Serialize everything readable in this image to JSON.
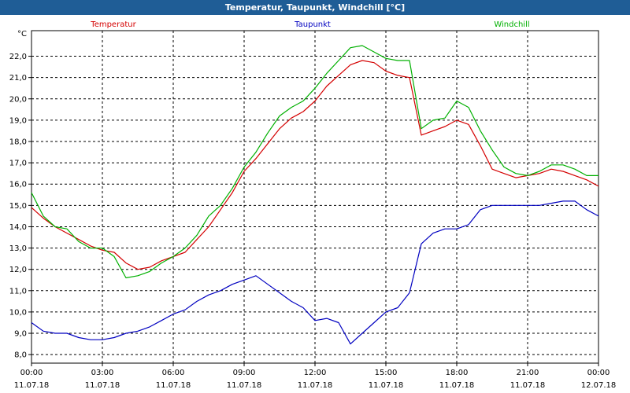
{
  "window": {
    "title": "Temperatur, Taupunkt, Windchill [°C]"
  },
  "colors": {
    "titlebar": "#1f5d96",
    "grid": "#000000",
    "temperatur": "#d40000",
    "taupunkt": "#0000c0",
    "windchill": "#00b000"
  },
  "chart_data": {
    "type": "line",
    "title": "Temperatur, Taupunkt, Windchill [°C]",
    "ylabel": "°C",
    "ylim": [
      7.6,
      23.2
    ],
    "yticks": [
      "8,0",
      "9,0",
      "10,0",
      "11,0",
      "12,0",
      "13,0",
      "14,0",
      "15,0",
      "16,0",
      "17,0",
      "18,0",
      "19,0",
      "20,0",
      "21,0",
      "22,0"
    ],
    "xlim": [
      0,
      24
    ],
    "xticks": [
      {
        "time": "00:00",
        "date": "11.07.18"
      },
      {
        "time": "03:00",
        "date": "11.07.18"
      },
      {
        "time": "06:00",
        "date": "11.07.18"
      },
      {
        "time": "09:00",
        "date": "11.07.18"
      },
      {
        "time": "12:00",
        "date": "11.07.18"
      },
      {
        "time": "15:00",
        "date": "11.07.18"
      },
      {
        "time": "18:00",
        "date": "11.07.18"
      },
      {
        "time": "21:00",
        "date": "11.07.18"
      },
      {
        "time": "00:00",
        "date": "12.07.18"
      }
    ],
    "grid": true,
    "series": [
      {
        "name": "Temperatur",
        "color": "#d40000",
        "x": [
          0,
          0.5,
          1,
          1.5,
          2,
          2.5,
          3,
          3.5,
          4,
          4.5,
          5,
          5.5,
          6,
          6.5,
          7,
          7.5,
          8,
          8.5,
          9,
          9.5,
          10,
          10.5,
          11,
          11.5,
          12,
          12.5,
          13,
          13.5,
          14,
          14.5,
          15,
          15.5,
          16,
          16.5,
          17,
          17.5,
          18,
          18.5,
          19,
          19.5,
          20,
          20.5,
          21,
          21.5,
          22,
          22.5,
          23,
          23.5,
          24
        ],
        "values": [
          14.9,
          14.4,
          14.0,
          13.7,
          13.4,
          13.1,
          12.9,
          12.8,
          12.3,
          12.0,
          12.1,
          12.4,
          12.6,
          12.8,
          13.4,
          14.0,
          14.8,
          15.6,
          16.6,
          17.2,
          17.9,
          18.6,
          19.1,
          19.4,
          19.9,
          20.6,
          21.1,
          21.6,
          21.8,
          21.7,
          21.3,
          21.1,
          21.0,
          18.3,
          18.5,
          18.7,
          19.0,
          18.8,
          17.8,
          16.7,
          16.5,
          16.3,
          16.4,
          16.5,
          16.7,
          16.6,
          16.4,
          16.2,
          15.9
        ]
      },
      {
        "name": "Taupunkt",
        "color": "#0000c0",
        "x": [
          0,
          0.5,
          1,
          1.5,
          2,
          2.5,
          3,
          3.5,
          4,
          4.5,
          5,
          5.5,
          6,
          6.5,
          7,
          7.5,
          8,
          8.5,
          9,
          9.5,
          10,
          10.5,
          11,
          11.5,
          12,
          12.5,
          13,
          13.5,
          14,
          14.5,
          15,
          15.5,
          16,
          16.5,
          17,
          17.5,
          18,
          18.5,
          19,
          19.5,
          20,
          20.5,
          21,
          21.5,
          22,
          22.5,
          23,
          23.5,
          24
        ],
        "values": [
          9.5,
          9.1,
          9.0,
          9.0,
          8.8,
          8.7,
          8.7,
          8.8,
          9.0,
          9.1,
          9.3,
          9.6,
          9.9,
          10.1,
          10.5,
          10.8,
          11.0,
          11.3,
          11.5,
          11.7,
          11.3,
          10.9,
          10.5,
          10.2,
          9.6,
          9.7,
          9.5,
          8.5,
          9.0,
          9.5,
          10.0,
          10.2,
          10.9,
          13.2,
          13.7,
          13.9,
          13.9,
          14.1,
          14.8,
          15.0,
          15.0,
          15.0,
          15.0,
          15.0,
          15.1,
          15.2,
          15.2,
          14.8,
          14.5
        ]
      },
      {
        "name": "Windchill",
        "color": "#00b000",
        "x": [
          0,
          0.5,
          1,
          1.5,
          2,
          2.5,
          3,
          3.5,
          4,
          4.5,
          5,
          5.5,
          6,
          6.5,
          7,
          7.5,
          8,
          8.5,
          9,
          9.5,
          10,
          10.5,
          11,
          11.5,
          12,
          12.5,
          13,
          13.5,
          14,
          14.5,
          15,
          15.5,
          16,
          16.5,
          17,
          17.5,
          18,
          18.5,
          19,
          19.5,
          20,
          20.5,
          21,
          21.5,
          22,
          22.5,
          23,
          23.5,
          24
        ],
        "values": [
          15.6,
          14.5,
          14.0,
          13.9,
          13.3,
          13.0,
          13.0,
          12.6,
          11.6,
          11.7,
          11.9,
          12.3,
          12.6,
          13.0,
          13.6,
          14.5,
          15.0,
          15.8,
          16.8,
          17.5,
          18.4,
          19.2,
          19.6,
          19.9,
          20.5,
          21.2,
          21.8,
          22.4,
          22.5,
          22.2,
          21.9,
          21.8,
          21.8,
          18.6,
          19.0,
          19.1,
          19.9,
          19.6,
          18.5,
          17.6,
          16.8,
          16.5,
          16.4,
          16.6,
          16.9,
          16.9,
          16.7,
          16.4,
          16.4
        ]
      }
    ]
  }
}
